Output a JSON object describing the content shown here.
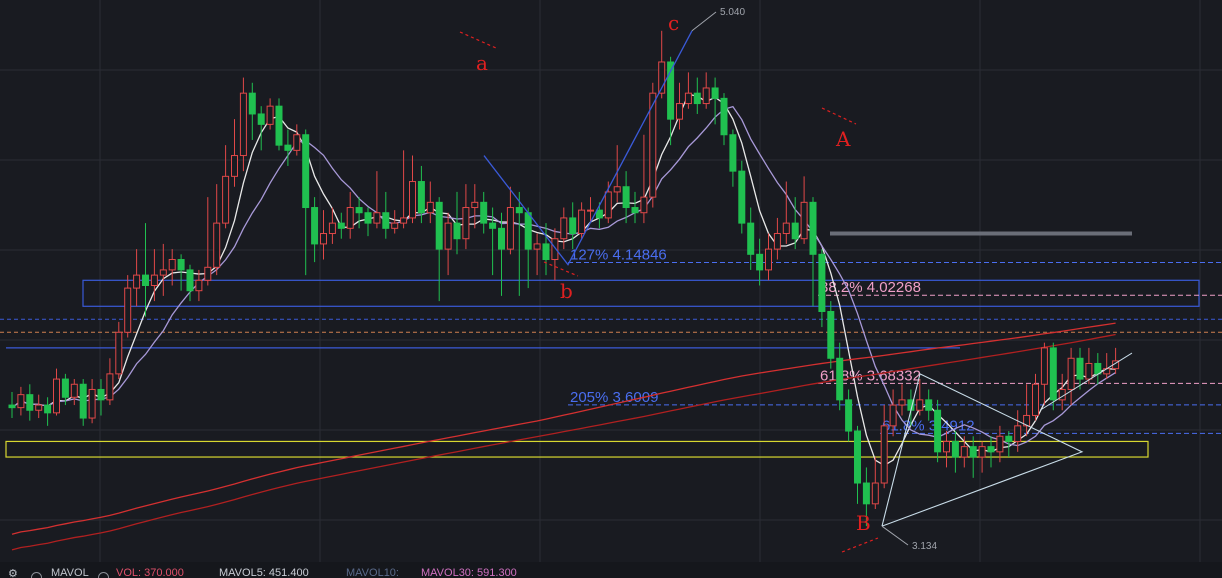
{
  "chart_data": {
    "type": "candlestick",
    "ylim": [
      3.05,
      5.12
    ],
    "price_markers": {
      "high": "5.040",
      "low": "3.134"
    },
    "wave_labels": [
      "a",
      "b",
      "c",
      "A",
      "B"
    ],
    "fib_levels": [
      {
        "label": "127% 4.14846",
        "value": 4.14846,
        "color": "#4a6ef0"
      },
      {
        "label": "38.2% 4.02268",
        "value": 4.02268,
        "color": "#f0a0c8"
      },
      {
        "label": "61.8% 3.68332",
        "value": 3.68332,
        "color": "#f0a0c8"
      },
      {
        "label": "205% 3.6009",
        "value": 3.6009,
        "color": "#4a6ef0"
      },
      {
        "label": "61.8% 3.4912",
        "value": 3.4912,
        "color": "#4a6ef0"
      }
    ],
    "candles": [
      [
        3.6,
        3.59,
        3.65,
        3.55
      ],
      [
        3.59,
        3.64,
        3.67,
        3.56
      ],
      [
        3.64,
        3.58,
        3.68,
        3.54
      ],
      [
        3.58,
        3.6,
        3.64,
        3.55
      ],
      [
        3.6,
        3.57,
        3.63,
        3.52
      ],
      [
        3.57,
        3.7,
        3.74,
        3.56
      ],
      [
        3.7,
        3.63,
        3.72,
        3.6
      ],
      [
        3.63,
        3.68,
        3.7,
        3.6
      ],
      [
        3.68,
        3.55,
        3.7,
        3.52
      ],
      [
        3.55,
        3.66,
        3.7,
        3.53
      ],
      [
        3.66,
        3.62,
        3.7,
        3.56
      ],
      [
        3.62,
        3.72,
        3.78,
        3.6
      ],
      [
        3.72,
        3.88,
        3.92,
        3.7
      ],
      [
        3.88,
        4.05,
        4.1,
        3.86
      ],
      [
        4.05,
        4.1,
        4.2,
        3.98
      ],
      [
        4.1,
        4.06,
        4.3,
        3.94
      ],
      [
        4.06,
        4.1,
        4.2,
        4.0
      ],
      [
        4.1,
        4.12,
        4.22,
        4.02
      ],
      [
        4.12,
        4.16,
        4.2,
        4.06
      ],
      [
        4.16,
        4.12,
        4.18,
        4.04
      ],
      [
        4.12,
        4.04,
        4.14,
        4.0
      ],
      [
        4.04,
        4.08,
        4.12,
        4.0
      ],
      [
        4.08,
        4.13,
        4.4,
        4.06
      ],
      [
        4.13,
        4.3,
        4.45,
        4.1
      ],
      [
        4.3,
        4.48,
        4.6,
        4.28
      ],
      [
        4.48,
        4.56,
        4.7,
        4.44
      ],
      [
        4.56,
        4.8,
        4.86,
        4.5
      ],
      [
        4.8,
        4.72,
        4.84,
        4.62
      ],
      [
        4.72,
        4.68,
        4.75,
        4.58
      ],
      [
        4.68,
        4.75,
        4.78,
        4.66
      ],
      [
        4.75,
        4.6,
        4.78,
        4.58
      ],
      [
        4.6,
        4.58,
        4.66,
        4.52
      ],
      [
        4.58,
        4.64,
        4.68,
        4.56
      ],
      [
        4.64,
        4.36,
        4.66,
        4.1
      ],
      [
        4.36,
        4.22,
        4.4,
        4.15
      ],
      [
        4.22,
        4.26,
        4.35,
        4.16
      ],
      [
        4.26,
        4.3,
        4.36,
        4.22
      ],
      [
        4.3,
        4.28,
        4.34,
        4.24
      ],
      [
        4.28,
        4.36,
        4.42,
        4.24
      ],
      [
        4.36,
        4.34,
        4.4,
        4.28
      ],
      [
        4.34,
        4.3,
        4.36,
        4.25
      ],
      [
        4.3,
        4.34,
        4.5,
        4.28
      ],
      [
        4.34,
        4.28,
        4.42,
        4.24
      ],
      [
        4.28,
        4.3,
        4.35,
        4.26
      ],
      [
        4.3,
        4.32,
        4.58,
        4.28
      ],
      [
        4.32,
        4.46,
        4.56,
        4.3
      ],
      [
        4.46,
        4.34,
        4.52,
        4.3
      ],
      [
        4.34,
        4.38,
        4.46,
        4.3
      ],
      [
        4.38,
        4.2,
        4.4,
        4.0
      ],
      [
        4.2,
        4.3,
        4.34,
        4.1
      ],
      [
        4.3,
        4.24,
        4.42,
        4.18
      ],
      [
        4.24,
        4.36,
        4.45,
        4.2
      ],
      [
        4.36,
        4.38,
        4.45,
        4.28
      ],
      [
        4.38,
        4.3,
        4.42,
        4.26
      ],
      [
        4.3,
        4.28,
        4.36,
        4.1
      ],
      [
        4.28,
        4.2,
        4.34,
        4.02
      ],
      [
        4.2,
        4.36,
        4.44,
        4.18
      ],
      [
        4.36,
        4.34,
        4.42,
        4.02
      ],
      [
        4.34,
        4.2,
        4.36,
        4.05
      ],
      [
        4.2,
        4.22,
        4.26,
        4.1
      ],
      [
        4.22,
        4.16,
        4.3,
        4.1
      ],
      [
        4.16,
        4.24,
        4.28,
        4.08
      ],
      [
        4.24,
        4.32,
        4.36,
        4.2
      ],
      [
        4.32,
        4.26,
        4.38,
        4.2
      ],
      [
        4.26,
        4.35,
        4.38,
        4.24
      ],
      [
        4.35,
        4.35,
        4.4,
        4.3
      ],
      [
        4.35,
        4.32,
        4.38,
        4.28
      ],
      [
        4.32,
        4.42,
        4.46,
        4.3
      ],
      [
        4.42,
        4.44,
        4.6,
        4.38
      ],
      [
        4.44,
        4.36,
        4.5,
        4.3
      ],
      [
        4.36,
        4.34,
        4.42,
        4.3
      ],
      [
        4.34,
        4.4,
        4.64,
        4.3
      ],
      [
        4.4,
        4.8,
        4.84,
        4.36
      ],
      [
        4.8,
        4.92,
        5.04,
        4.78
      ],
      [
        4.92,
        4.7,
        4.94,
        4.6
      ],
      [
        4.7,
        4.76,
        4.84,
        4.66
      ],
      [
        4.76,
        4.8,
        4.88,
        4.74
      ],
      [
        4.8,
        4.76,
        4.86,
        4.72
      ],
      [
        4.76,
        4.82,
        4.88,
        4.74
      ],
      [
        4.82,
        4.78,
        4.86,
        4.68
      ],
      [
        4.78,
        4.64,
        4.8,
        4.6
      ],
      [
        4.64,
        4.5,
        4.66,
        4.44
      ],
      [
        4.5,
        4.3,
        4.54,
        4.26
      ],
      [
        4.3,
        4.18,
        4.36,
        4.12
      ],
      [
        4.18,
        4.12,
        4.24,
        4.06
      ],
      [
        4.12,
        4.2,
        4.26,
        4.08
      ],
      [
        4.2,
        4.26,
        4.32,
        4.16
      ],
      [
        4.26,
        4.3,
        4.46,
        4.22
      ],
      [
        4.3,
        4.24,
        4.4,
        4.2
      ],
      [
        4.24,
        4.38,
        4.48,
        4.22
      ],
      [
        4.38,
        4.18,
        4.4,
        3.98
      ],
      [
        4.18,
        3.96,
        4.2,
        3.9
      ],
      [
        3.96,
        3.78,
        4.0,
        3.74
      ],
      [
        3.78,
        3.62,
        3.84,
        3.58
      ],
      [
        3.62,
        3.5,
        3.66,
        3.46
      ],
      [
        3.5,
        3.3,
        3.52,
        3.22
      ],
      [
        3.3,
        3.22,
        3.36,
        3.134
      ],
      [
        3.22,
        3.3,
        3.4,
        3.2
      ],
      [
        3.3,
        3.52,
        3.6,
        3.28
      ],
      [
        3.52,
        3.6,
        3.66,
        3.48
      ],
      [
        3.6,
        3.62,
        3.68,
        3.56
      ],
      [
        3.62,
        3.58,
        3.66,
        3.52
      ],
      [
        3.58,
        3.62,
        3.7,
        3.56
      ],
      [
        3.62,
        3.58,
        3.66,
        3.54
      ],
      [
        3.58,
        3.42,
        3.62,
        3.38
      ],
      [
        3.42,
        3.46,
        3.5,
        3.36
      ],
      [
        3.46,
        3.4,
        3.5,
        3.34
      ],
      [
        3.4,
        3.44,
        3.48,
        3.36
      ],
      [
        3.44,
        3.4,
        3.48,
        3.32
      ],
      [
        3.4,
        3.44,
        3.46,
        3.34
      ],
      [
        3.44,
        3.42,
        3.48,
        3.36
      ],
      [
        3.42,
        3.48,
        3.52,
        3.38
      ],
      [
        3.48,
        3.46,
        3.5,
        3.4
      ],
      [
        3.46,
        3.52,
        3.58,
        3.42
      ],
      [
        3.52,
        3.56,
        3.68,
        3.48
      ],
      [
        3.56,
        3.68,
        3.72,
        3.54
      ],
      [
        3.68,
        3.82,
        3.84,
        3.6
      ],
      [
        3.82,
        3.62,
        3.84,
        3.58
      ],
      [
        3.62,
        3.66,
        3.72,
        3.58
      ],
      [
        3.66,
        3.78,
        3.82,
        3.6
      ],
      [
        3.78,
        3.7,
        3.82,
        3.66
      ],
      [
        3.7,
        3.76,
        3.82,
        3.68
      ],
      [
        3.76,
        3.72,
        3.8,
        3.68
      ],
      [
        3.72,
        3.74,
        3.8,
        3.7
      ],
      [
        3.74,
        3.77,
        3.82,
        3.72
      ]
    ],
    "moving_averages": [
      {
        "name": "MA5",
        "color": "#e8e8e8",
        "period": 5
      },
      {
        "name": "MA10",
        "color": "#a899d8",
        "period": 10
      },
      {
        "name": "MA60",
        "color": "#d43030",
        "period": 60
      },
      {
        "name": "MA120",
        "color": "#b02020",
        "period": 120
      }
    ]
  },
  "bottom_bar": {
    "mavol": "MAVOL",
    "vol": "VOL: 370.000",
    "mavol5": "MAVOL5: 451.400",
    "mavol10": "MAVOL10:",
    "mavol30": "MAVOL30: 591.300"
  }
}
